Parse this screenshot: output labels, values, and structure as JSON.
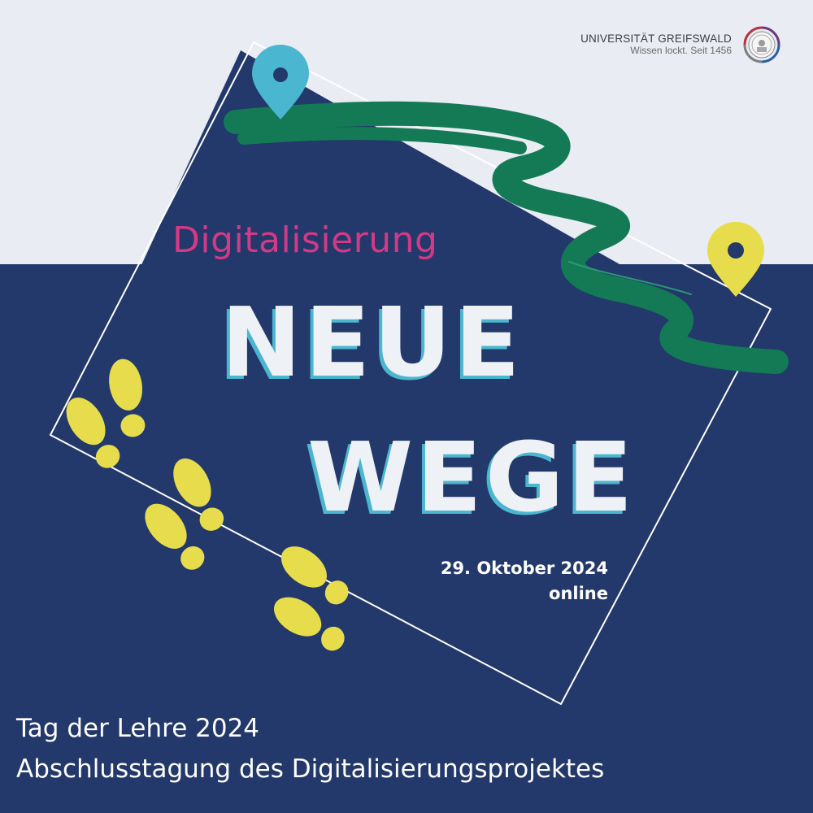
{
  "logo": {
    "name": "UNIVERSITÄT GREIFSWALD",
    "slogan": "Wissen lockt. Seit 1456"
  },
  "event": {
    "kicker": "Digitalisierung",
    "headline_line1": "NEUE",
    "headline_line2": "WEGE",
    "date": "29. Oktober 2024",
    "format": "online"
  },
  "footer": {
    "line1": "Tag der Lehre 2024",
    "line2": "Abschlusstagung des Digitalisierungsprojektes"
  },
  "colors": {
    "navy": "#23386b",
    "light_bg": "#e9ecf2",
    "magenta": "#d23a85",
    "cyan": "#4bb6cf",
    "green": "#137a55",
    "yellow": "#e6dc4c"
  },
  "icons": [
    "location-pin-icon",
    "footprint-icon",
    "university-seal-icon"
  ]
}
